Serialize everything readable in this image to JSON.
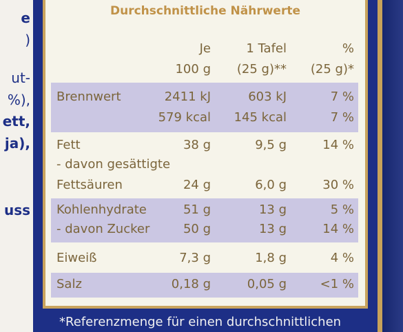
{
  "left_fragments": [
    "e",
    ")",
    "ut-",
    "%),",
    "ett,",
    "ja),",
    "uss"
  ],
  "title": "Durchschnittliche Nährwerte",
  "header": {
    "col2": [
      "Je",
      "100 g"
    ],
    "col3": [
      "1 Tafel",
      "(25 g)**"
    ],
    "col4": [
      "%",
      "(25 g)*"
    ]
  },
  "rows": [
    {
      "label": [
        "Brennwert",
        ""
      ],
      "per100": [
        "2411 kJ",
        "579 kcal"
      ],
      "perTafel": [
        "603 kJ",
        "145 kcal"
      ],
      "pct": [
        "7 %",
        "7 %"
      ]
    },
    {
      "label": [
        "Fett",
        "- davon gesättigte",
        "Fettsäuren"
      ],
      "per100": [
        "38 g",
        "",
        "24 g"
      ],
      "perTafel": [
        "9,5 g",
        "",
        "6,0 g"
      ],
      "pct": [
        "14 %",
        "",
        "30 %"
      ]
    },
    {
      "label": [
        "Kohlenhydrate",
        "- davon Zucker"
      ],
      "per100": [
        "51 g",
        "50 g"
      ],
      "perTafel": [
        "13 g",
        "13 g"
      ],
      "pct": [
        "5 %",
        "14 %"
      ]
    },
    {
      "label": [
        "Eiweiß"
      ],
      "per100": [
        "7,3 g"
      ],
      "perTafel": [
        "1,8 g"
      ],
      "pct": [
        "4 %"
      ]
    },
    {
      "label": [
        "Salz"
      ],
      "per100": [
        "0,18 g"
      ],
      "perTafel": [
        "0,05 g"
      ],
      "pct": [
        "<1 %"
      ]
    }
  ],
  "footnote": "*Referenzmenge für einen durchschnittlichen"
}
